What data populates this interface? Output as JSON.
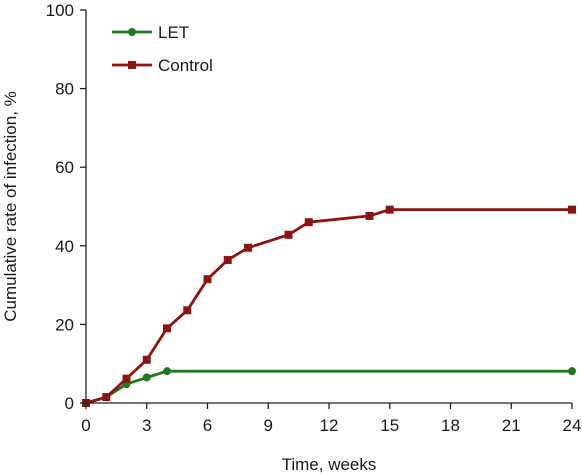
{
  "chart_data": {
    "type": "line",
    "title": "",
    "xlabel": "Time, weeks",
    "ylabel": "Cumulative rate of infection, %",
    "xlim": [
      0,
      24
    ],
    "ylim": [
      0,
      100
    ],
    "xticks": [
      0,
      3,
      6,
      9,
      12,
      15,
      18,
      21,
      24
    ],
    "yticks": [
      0,
      20,
      40,
      60,
      80,
      100
    ],
    "grid": false,
    "legend_position": "top-left",
    "series": [
      {
        "name": "LET",
        "color": "#1e7a1e",
        "marker": "circle",
        "x": [
          0,
          1,
          2,
          3,
          4,
          24
        ],
        "values": [
          0,
          1.5,
          4.8,
          6.5,
          8.1,
          8.1
        ]
      },
      {
        "name": "Control",
        "color": "#8b1414",
        "marker": "square",
        "x": [
          0,
          1,
          2,
          3,
          4,
          5,
          6,
          7,
          8,
          10,
          11,
          14,
          15,
          24
        ],
        "values": [
          0,
          1.5,
          6.2,
          11.0,
          19.0,
          23.6,
          31.5,
          36.4,
          39.5,
          42.8,
          46.0,
          47.6,
          49.2,
          49.2
        ]
      }
    ]
  }
}
